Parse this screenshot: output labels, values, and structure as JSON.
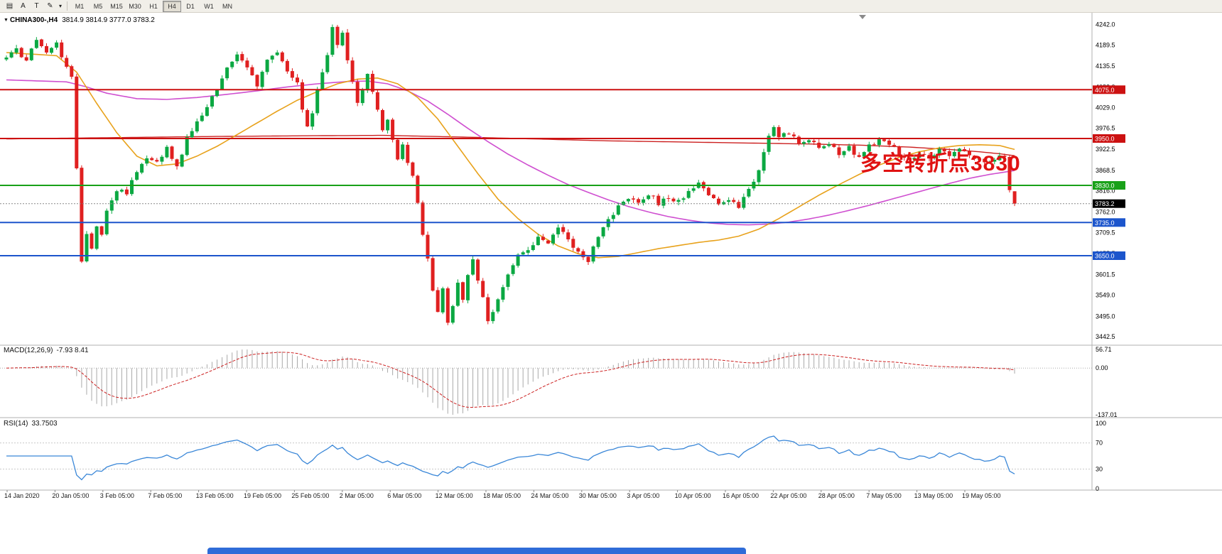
{
  "toolbar": {
    "icons": [
      {
        "name": "charts-icon",
        "glyph": "▤"
      },
      {
        "name": "cursor-tool-icon",
        "glyph": "A"
      },
      {
        "name": "text-tool-icon",
        "glyph": "T"
      },
      {
        "name": "draw-tool-icon",
        "glyph": "✎"
      },
      {
        "name": "dropdown-arrow-icon",
        "glyph": "▾"
      }
    ],
    "timeframes": [
      "M1",
      "M5",
      "M15",
      "M30",
      "H1",
      "H4",
      "D1",
      "W1",
      "MN"
    ],
    "active_timeframe": "H4"
  },
  "chart": {
    "symbol": "CHINA300-,H4",
    "quote": "3814.9 3814.9 3777.0 3783.2",
    "annotation": {
      "text": "多空转折点3830",
      "color": "#e01212"
    },
    "levels": [
      {
        "value": 4075.0,
        "label": "4075.0",
        "color": "#cc1111",
        "width": 2
      },
      {
        "value": 3950.0,
        "label": "3950.0",
        "color": "#cc1111",
        "width": 2
      },
      {
        "value": 3830.0,
        "label": "3830.0",
        "color": "#19a119",
        "width": 2
      },
      {
        "value": 3735.0,
        "label": "3735.0",
        "color": "#1c55cc",
        "width": 2
      },
      {
        "value": 3650.0,
        "label": "3650.0",
        "color": "#1c55cc",
        "width": 2
      }
    ],
    "current_price": {
      "value": "3783.2",
      "tag_bg": "#000000"
    },
    "price_axis": [
      "4242.0",
      "4189.5",
      "4135.5",
      "4082.0",
      "4029.0",
      "3976.5",
      "3922.5",
      "3868.5",
      "3816.0",
      "3762.0",
      "3709.5",
      "3655.5",
      "3601.5",
      "3549.0",
      "3495.0",
      "3442.5"
    ]
  },
  "macd": {
    "label": "MACD(12,26,9)",
    "values": "-7.93 8.41",
    "axis": [
      "56.71",
      "0.00",
      "-137.01"
    ]
  },
  "rsi": {
    "label": "RSI(14)",
    "value": "33.7503",
    "axis": [
      "100",
      "70",
      "30",
      "0"
    ]
  },
  "dates": [
    "14 Jan 2020",
    "20 Jan 05:00",
    "3 Feb 05:00",
    "7 Feb 05:00",
    "13 Feb 05:00",
    "19 Feb 05:00",
    "25 Feb 05:00",
    "2 Mar 05:00",
    "6 Mar 05:00",
    "12 Mar 05:00",
    "18 Mar 05:00",
    "24 Mar 05:00",
    "30 Mar 05:00",
    "3 Apr 05:00",
    "10 Apr 05:00",
    "16 Apr 05:00",
    "22 Apr 05:00",
    "28 Apr 05:00",
    "7 May 05:00",
    "13 May 05:00",
    "19 May 05:00"
  ],
  "chart_data": {
    "type": "candlestick",
    "symbol": "CHINA300-",
    "timeframe": "H4",
    "bar_count": 202,
    "price_range": [
      3442.5,
      4242.0
    ],
    "last_bar": {
      "open": 3814.9,
      "high": 3814.9,
      "low": 3777.0,
      "close": 3783.2
    },
    "colors": {
      "up": "#0ba842",
      "down": "#e02020",
      "ma_orange": "#e8a21c",
      "ma_magenta": "#cf4fd0",
      "ma_red": "#cc2020",
      "macd_hist": "#a9a9a9",
      "macd_signal": "#cc2020",
      "rsi_line": "#3a87d8"
    },
    "price_anchors": [
      [
        0,
        4155
      ],
      [
        2,
        4175
      ],
      [
        4,
        4150
      ],
      [
        6,
        4200
      ],
      [
        8,
        4165
      ],
      [
        10,
        4190
      ],
      [
        12,
        4130
      ],
      [
        13,
        4110
      ],
      [
        14,
        3870
      ],
      [
        15,
        3640
      ],
      [
        16,
        3700
      ],
      [
        17,
        3665
      ],
      [
        18,
        3730
      ],
      [
        19,
        3700
      ],
      [
        20,
        3770
      ],
      [
        22,
        3820
      ],
      [
        24,
        3805
      ],
      [
        26,
        3870
      ],
      [
        28,
        3905
      ],
      [
        30,
        3890
      ],
      [
        32,
        3925
      ],
      [
        34,
        3875
      ],
      [
        36,
        3950
      ],
      [
        38,
        3995
      ],
      [
        40,
        4035
      ],
      [
        42,
        4080
      ],
      [
        44,
        4135
      ],
      [
        46,
        4160
      ],
      [
        48,
        4130
      ],
      [
        50,
        4085
      ],
      [
        52,
        4150
      ],
      [
        54,
        4170
      ],
      [
        56,
        4120
      ],
      [
        58,
        4090
      ],
      [
        59,
        4030
      ],
      [
        60,
        3985
      ],
      [
        61,
        4020
      ],
      [
        62,
        4070
      ],
      [
        63,
        4120
      ],
      [
        64,
        4165
      ],
      [
        65,
        4230
      ],
      [
        66,
        4190
      ],
      [
        67,
        4220
      ],
      [
        68,
        4150
      ],
      [
        69,
        4090
      ],
      [
        70,
        4035
      ],
      [
        71,
        4080
      ],
      [
        72,
        4120
      ],
      [
        73,
        4075
      ],
      [
        74,
        4020
      ],
      [
        75,
        3975
      ],
      [
        76,
        4000
      ],
      [
        77,
        3950
      ],
      [
        78,
        3900
      ],
      [
        79,
        3930
      ],
      [
        80,
        3890
      ],
      [
        81,
        3850
      ],
      [
        82,
        3790
      ],
      [
        83,
        3700
      ],
      [
        84,
        3640
      ],
      [
        85,
        3560
      ],
      [
        86,
        3510
      ],
      [
        87,
        3560
      ],
      [
        88,
        3480
      ],
      [
        89,
        3520
      ],
      [
        90,
        3580
      ],
      [
        91,
        3540
      ],
      [
        92,
        3600
      ],
      [
        93,
        3640
      ],
      [
        94,
        3580
      ],
      [
        95,
        3540
      ],
      [
        96,
        3480
      ],
      [
        98,
        3540
      ],
      [
        100,
        3600
      ],
      [
        102,
        3650
      ],
      [
        104,
        3665
      ],
      [
        106,
        3700
      ],
      [
        108,
        3680
      ],
      [
        110,
        3720
      ],
      [
        112,
        3690
      ],
      [
        114,
        3660
      ],
      [
        116,
        3640
      ],
      [
        118,
        3700
      ],
      [
        120,
        3740
      ],
      [
        122,
        3780
      ],
      [
        124,
        3800
      ],
      [
        126,
        3790
      ],
      [
        128,
        3810
      ],
      [
        130,
        3785
      ],
      [
        132,
        3800
      ],
      [
        134,
        3790
      ],
      [
        136,
        3810
      ],
      [
        138,
        3835
      ],
      [
        140,
        3810
      ],
      [
        142,
        3780
      ],
      [
        144,
        3790
      ],
      [
        146,
        3775
      ],
      [
        148,
        3815
      ],
      [
        150,
        3875
      ],
      [
        151,
        3920
      ],
      [
        152,
        3955
      ],
      [
        153,
        3975
      ],
      [
        154,
        3950
      ],
      [
        156,
        3965
      ],
      [
        158,
        3935
      ],
      [
        160,
        3950
      ],
      [
        162,
        3920
      ],
      [
        164,
        3938
      ],
      [
        166,
        3910
      ],
      [
        168,
        3925
      ],
      [
        170,
        3898
      ],
      [
        172,
        3930
      ],
      [
        174,
        3948
      ],
      [
        176,
        3938
      ],
      [
        178,
        3912
      ],
      [
        180,
        3892
      ],
      [
        182,
        3915
      ],
      [
        184,
        3900
      ],
      [
        186,
        3925
      ],
      [
        188,
        3910
      ],
      [
        190,
        3928
      ],
      [
        192,
        3905
      ],
      [
        194,
        3898
      ],
      [
        196,
        3890
      ],
      [
        198,
        3905
      ],
      [
        199,
        3898
      ],
      [
        200,
        3815
      ],
      [
        201,
        3783.2
      ]
    ],
    "ma_orange": [
      [
        0,
        4170
      ],
      [
        10,
        4162
      ],
      [
        14,
        4120
      ],
      [
        18,
        4040
      ],
      [
        22,
        3965
      ],
      [
        26,
        3905
      ],
      [
        30,
        3880
      ],
      [
        34,
        3885
      ],
      [
        38,
        3905
      ],
      [
        42,
        3930
      ],
      [
        46,
        3960
      ],
      [
        50,
        3990
      ],
      [
        54,
        4020
      ],
      [
        58,
        4048
      ],
      [
        62,
        4070
      ],
      [
        66,
        4090
      ],
      [
        70,
        4102
      ],
      [
        74,
        4105
      ],
      [
        78,
        4090
      ],
      [
        82,
        4055
      ],
      [
        86,
        4000
      ],
      [
        90,
        3930
      ],
      [
        94,
        3860
      ],
      [
        98,
        3795
      ],
      [
        102,
        3745
      ],
      [
        106,
        3705
      ],
      [
        110,
        3675
      ],
      [
        114,
        3655
      ],
      [
        118,
        3645
      ],
      [
        122,
        3648
      ],
      [
        126,
        3658
      ],
      [
        130,
        3668
      ],
      [
        134,
        3676
      ],
      [
        138,
        3684
      ],
      [
        142,
        3690
      ],
      [
        146,
        3700
      ],
      [
        150,
        3718
      ],
      [
        154,
        3745
      ],
      [
        158,
        3775
      ],
      [
        162,
        3805
      ],
      [
        166,
        3832
      ],
      [
        170,
        3858
      ],
      [
        174,
        3882
      ],
      [
        178,
        3902
      ],
      [
        182,
        3916
      ],
      [
        186,
        3926
      ],
      [
        190,
        3932
      ],
      [
        194,
        3934
      ],
      [
        198,
        3932
      ],
      [
        201,
        3922
      ]
    ],
    "ma_magenta": [
      [
        0,
        4100
      ],
      [
        12,
        4095
      ],
      [
        16,
        4082
      ],
      [
        20,
        4066
      ],
      [
        26,
        4052
      ],
      [
        32,
        4050
      ],
      [
        38,
        4055
      ],
      [
        44,
        4063
      ],
      [
        50,
        4072
      ],
      [
        56,
        4082
      ],
      [
        62,
        4090
      ],
      [
        68,
        4096
      ],
      [
        72,
        4097
      ],
      [
        76,
        4090
      ],
      [
        80,
        4072
      ],
      [
        84,
        4046
      ],
      [
        88,
        4012
      ],
      [
        92,
        3976
      ],
      [
        96,
        3942
      ],
      [
        100,
        3910
      ],
      [
        104,
        3882
      ],
      [
        108,
        3856
      ],
      [
        112,
        3832
      ],
      [
        116,
        3812
      ],
      [
        120,
        3793
      ],
      [
        124,
        3776
      ],
      [
        128,
        3762
      ],
      [
        132,
        3750
      ],
      [
        136,
        3741
      ],
      [
        140,
        3734
      ],
      [
        144,
        3730
      ],
      [
        148,
        3729
      ],
      [
        152,
        3731
      ],
      [
        156,
        3736
      ],
      [
        160,
        3744
      ],
      [
        164,
        3754
      ],
      [
        168,
        3766
      ],
      [
        172,
        3779
      ],
      [
        176,
        3793
      ],
      [
        180,
        3807
      ],
      [
        184,
        3821
      ],
      [
        188,
        3835
      ],
      [
        192,
        3848
      ],
      [
        196,
        3858
      ],
      [
        201,
        3868
      ]
    ],
    "ma_red": [
      [
        0,
        3949
      ],
      [
        20,
        3952
      ],
      [
        40,
        3955
      ],
      [
        60,
        3957
      ],
      [
        75,
        3958
      ],
      [
        90,
        3954
      ],
      [
        105,
        3949
      ],
      [
        120,
        3944
      ],
      [
        135,
        3941
      ],
      [
        150,
        3938
      ],
      [
        160,
        3936
      ],
      [
        170,
        3933
      ],
      [
        180,
        3928
      ],
      [
        188,
        3922
      ],
      [
        194,
        3916
      ],
      [
        198,
        3911
      ],
      [
        201,
        3906
      ]
    ]
  }
}
